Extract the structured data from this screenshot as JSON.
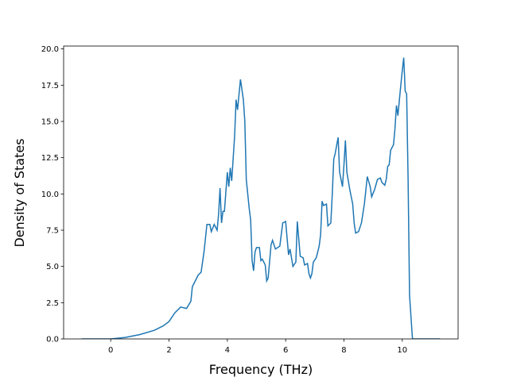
{
  "chart_data": {
    "type": "line",
    "xlabel": "Frequency (THz)",
    "ylabel": "Density of States",
    "x": [
      -1.0,
      0,
      0.5,
      1.0,
      1.5,
      1.8,
      2.0,
      2.2,
      2.4,
      2.6,
      2.75,
      2.8,
      3.0,
      3.1,
      3.2,
      3.3,
      3.4,
      3.45,
      3.55,
      3.65,
      3.7,
      3.75,
      3.8,
      3.85,
      3.9,
      4.0,
      4.05,
      4.1,
      4.15,
      4.25,
      4.3,
      4.35,
      4.45,
      4.55,
      4.6,
      4.65,
      4.75,
      4.8,
      4.85,
      4.9,
      4.95,
      5.0,
      5.1,
      5.15,
      5.2,
      5.3,
      5.35,
      5.4,
      5.5,
      5.55,
      5.65,
      5.8,
      5.9,
      6.0,
      6.1,
      6.15,
      6.25,
      6.35,
      6.4,
      6.5,
      6.6,
      6.65,
      6.75,
      6.8,
      6.85,
      6.9,
      6.95,
      7.05,
      7.15,
      7.2,
      7.25,
      7.3,
      7.4,
      7.45,
      7.55,
      7.6,
      7.65,
      7.7,
      7.8,
      7.85,
      7.95,
      8.0,
      8.05,
      8.1,
      8.2,
      8.3,
      8.35,
      8.4,
      8.5,
      8.6,
      8.7,
      8.8,
      8.9,
      8.95,
      9.05,
      9.15,
      9.25,
      9.3,
      9.4,
      9.45,
      9.5,
      9.55,
      9.6,
      9.7,
      9.75,
      9.8,
      9.85,
      9.95,
      10.0,
      10.05,
      10.1,
      10.15,
      10.2,
      10.25,
      10.3,
      10.35,
      11.3
    ],
    "series": [
      {
        "name": "DOS",
        "color": "#1f77b4",
        "values": [
          0,
          0,
          0.1,
          0.3,
          0.6,
          0.9,
          1.2,
          1.8,
          2.2,
          2.1,
          2.6,
          3.6,
          4.4,
          4.6,
          6.0,
          7.9,
          7.9,
          7.4,
          7.9,
          7.5,
          8.6,
          10.4,
          8.0,
          8.8,
          8.8,
          11.5,
          10.5,
          11.8,
          10.9,
          14.0,
          16.5,
          15.8,
          17.9,
          16.5,
          15.0,
          11.0,
          9.0,
          8.2,
          5.4,
          4.7,
          6.0,
          6.3,
          6.3,
          5.4,
          5.5,
          5.1,
          4.0,
          4.2,
          6.5,
          6.8,
          6.2,
          6.4,
          8.0,
          8.1,
          5.8,
          6.2,
          5.0,
          5.3,
          8.1,
          5.7,
          5.6,
          5.1,
          5.2,
          4.5,
          4.2,
          4.5,
          5.3,
          5.6,
          6.4,
          7.2,
          9.5,
          9.2,
          9.3,
          7.8,
          8.0,
          10.0,
          12.4,
          12.8,
          13.9,
          11.5,
          10.5,
          12.0,
          13.7,
          11.5,
          10.3,
          9.3,
          8.0,
          7.3,
          7.4,
          8.0,
          9.3,
          11.2,
          10.5,
          9.8,
          10.3,
          11.0,
          11.1,
          10.8,
          10.6,
          11.0,
          11.9,
          12.0,
          13.0,
          13.4,
          14.5,
          16.1,
          15.4,
          17.5,
          18.5,
          19.4,
          17.1,
          16.9,
          11.0,
          3.0,
          1.5,
          0,
          0
        ]
      }
    ],
    "xlim": [
      -1.615,
      11.915
    ],
    "xticks": [
      0,
      2,
      4,
      6,
      8,
      10
    ],
    "ylim": [
      0,
      20.2
    ],
    "yticks": [
      {
        "value": 0,
        "label": "0.0"
      },
      {
        "value": 2.5,
        "label": "2.5"
      },
      {
        "value": 5,
        "label": "5.0"
      },
      {
        "value": 7.5,
        "label": "7.5"
      },
      {
        "value": 10,
        "label": "10.0"
      },
      {
        "value": 12.5,
        "label": "12.5"
      },
      {
        "value": 15,
        "label": "15.0"
      },
      {
        "value": 17.5,
        "label": "17.5"
      },
      {
        "value": 20,
        "label": "20.0"
      }
    ]
  }
}
